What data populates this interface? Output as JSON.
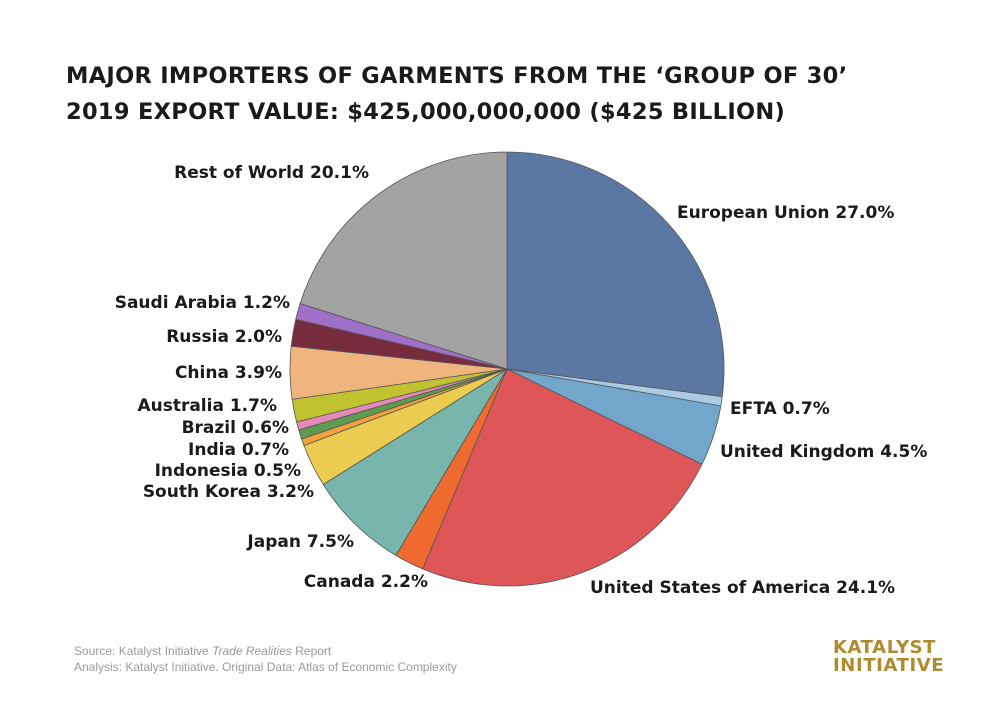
{
  "title": {
    "line1": "MAJOR IMPORTERS OF GARMENTS FROM THE ‘GROUP OF 30’",
    "line2": "2019 EXPORT VALUE: $425,000,000,000 ($425 BILLION)"
  },
  "source": {
    "line1_prefix": "Source: Katalyst Initiative ",
    "line1_italic": "Trade Realities",
    "line1_suffix": " Report",
    "line2": "Analysis: Katalyst Initiative.  Original Data: Atlas of Economic Complexity"
  },
  "logo": {
    "line1": "KATALYST",
    "line2": "INITIATIVE"
  },
  "chart_data": {
    "type": "pie",
    "title": "MAJOR IMPORTERS OF GARMENTS FROM THE ‘GROUP OF 30’",
    "subtitle": "2019 EXPORT VALUE: $425,000,000,000 ($425 BILLION)",
    "unit": "%",
    "start": "12 o'clock",
    "direction": "clockwise",
    "slices": [
      {
        "name": "European Union",
        "value": 27.0,
        "label": "European Union 27.0%",
        "color": "#5b78a4"
      },
      {
        "name": "EFTA",
        "value": 0.7,
        "label": "EFTA 0.7%",
        "color": "#a9cbe6"
      },
      {
        "name": "United Kingdom",
        "value": 4.5,
        "label": "United Kingdom 4.5%",
        "color": "#73a6cb"
      },
      {
        "name": "United States of America",
        "value": 24.1,
        "label": "United States of America 24.1%",
        "color": "#df5659"
      },
      {
        "name": "Canada",
        "value": 2.2,
        "label": "Canada 2.2%",
        "color": "#ee6a2e"
      },
      {
        "name": "Japan",
        "value": 7.5,
        "label": "Japan 7.5%",
        "color": "#78b5ad"
      },
      {
        "name": "South Korea",
        "value": 3.2,
        "label": "South Korea 3.2%",
        "color": "#ebcb50"
      },
      {
        "name": "Indonesia",
        "value": 0.5,
        "label": "Indonesia 0.5%",
        "color": "#f2a13c"
      },
      {
        "name": "India",
        "value": 0.7,
        "label": "India 0.7%",
        "color": "#5f9b4e"
      },
      {
        "name": "Brazil",
        "value": 0.6,
        "label": "Brazil 0.6%",
        "color": "#e589b6"
      },
      {
        "name": "Australia",
        "value": 1.7,
        "label": "Australia 1.7%",
        "color": "#c1c22f"
      },
      {
        "name": "China",
        "value": 3.9,
        "label": "China 3.9%",
        "color": "#f0b57f"
      },
      {
        "name": "Russia",
        "value": 2.0,
        "label": "Russia 2.0%",
        "color": "#772c3e"
      },
      {
        "name": "Saudi Arabia",
        "value": 1.2,
        "label": "Saudi Arabia 1.2%",
        "color": "#a06fc8"
      },
      {
        "name": "Rest of World",
        "value": 20.1,
        "label": "Rest of World 20.1%",
        "color": "#a3a3a3"
      }
    ]
  }
}
